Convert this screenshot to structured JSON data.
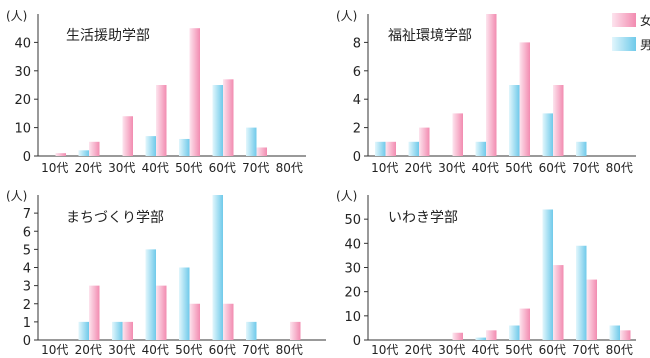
{
  "legend": [
    {
      "label": "女",
      "color": "#f7a8c4"
    },
    {
      "label": "男",
      "color": "#9fdcf0"
    }
  ],
  "chart_data": [
    {
      "type": "bar",
      "title": "生活援助学部",
      "ylabel": "(人)",
      "categories": [
        "10代",
        "20代",
        "30代",
        "40代",
        "50代",
        "60代",
        "70代",
        "80代"
      ],
      "ylim": [
        0,
        50
      ],
      "yticks": [
        0,
        10,
        20,
        30,
        40
      ],
      "series": [
        {
          "name": "男",
          "values": [
            0,
            2,
            0,
            7,
            6,
            25,
            10,
            0
          ]
        },
        {
          "name": "女",
          "values": [
            1,
            5,
            14,
            25,
            45,
            27,
            3,
            0
          ]
        }
      ]
    },
    {
      "type": "bar",
      "title": "福祉環境学部",
      "ylabel": "(人)",
      "categories": [
        "10代",
        "20代",
        "30代",
        "40代",
        "50代",
        "60代",
        "70代",
        "80代"
      ],
      "ylim": [
        0,
        10
      ],
      "yticks": [
        0,
        2,
        4,
        6,
        8
      ],
      "series": [
        {
          "name": "男",
          "values": [
            1,
            1,
            0,
            1,
            5,
            3,
            1,
            0
          ]
        },
        {
          "name": "女",
          "values": [
            1,
            2,
            3,
            10,
            8,
            5,
            0,
            0
          ]
        }
      ]
    },
    {
      "type": "bar",
      "title": "まちづくり学部",
      "ylabel": "(人)",
      "categories": [
        "10代",
        "20代",
        "30代",
        "40代",
        "50代",
        "60代",
        "70代",
        "80代"
      ],
      "ylim": [
        0,
        8
      ],
      "yticks": [
        0,
        1,
        2,
        3,
        4,
        5,
        6,
        7
      ],
      "series": [
        {
          "name": "男",
          "values": [
            0,
            1,
            1,
            5,
            4,
            8,
            1,
            0
          ]
        },
        {
          "name": "女",
          "values": [
            0,
            3,
            1,
            3,
            2,
            2,
            0,
            1
          ]
        }
      ]
    },
    {
      "type": "bar",
      "title": "いわき学部",
      "ylabel": "(人)",
      "categories": [
        "10代",
        "20代",
        "30代",
        "40代",
        "50代",
        "60代",
        "70代",
        "80代"
      ],
      "ylim": [
        0,
        60
      ],
      "yticks": [
        0,
        10,
        20,
        30,
        40,
        50
      ],
      "series": [
        {
          "name": "男",
          "values": [
            0,
            0,
            0,
            1,
            6,
            54,
            39,
            6
          ]
        },
        {
          "name": "女",
          "values": [
            0,
            0,
            3,
            4,
            13,
            31,
            25,
            4
          ]
        }
      ]
    }
  ]
}
